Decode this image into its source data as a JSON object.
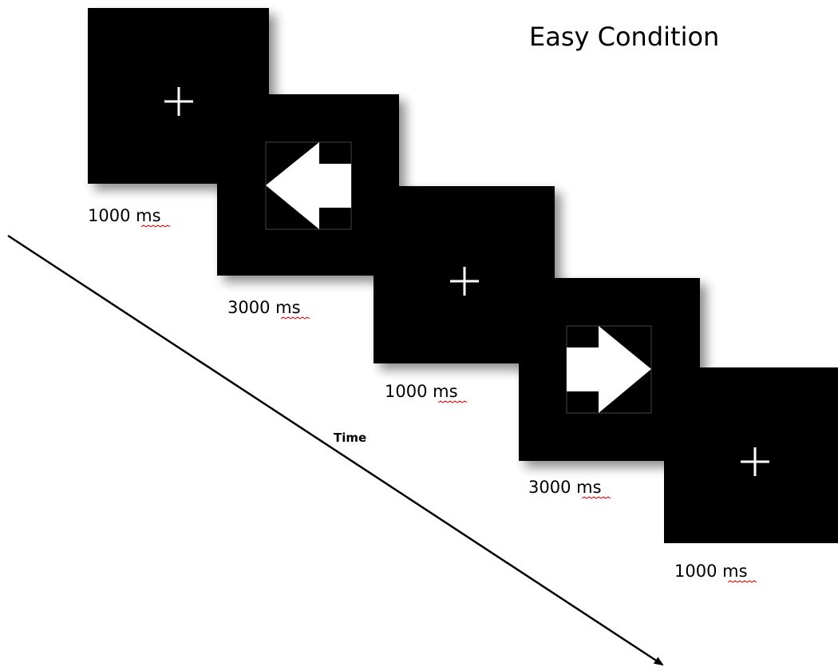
{
  "title": "Easy Condition",
  "screens": [
    {
      "duration": "1000 ms"
    },
    {
      "duration": "3000 ms"
    },
    {
      "duration": "1000 ms"
    },
    {
      "duration": "3000 ms"
    },
    {
      "duration": "1000 ms"
    }
  ],
  "time_label": "Time"
}
